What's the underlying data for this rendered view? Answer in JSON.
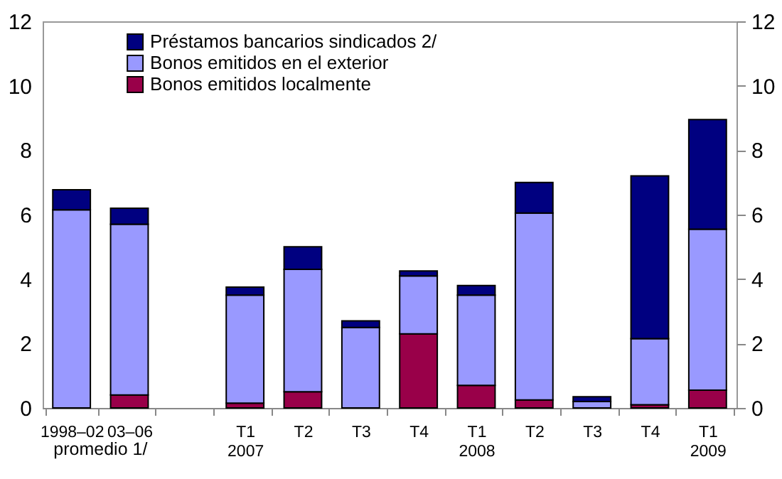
{
  "chart_data": {
    "type": "bar",
    "stacked": true,
    "categories": [
      "1998–02",
      "03–06",
      null,
      "T1\n2007",
      "T2",
      "T3",
      "T4",
      "T1\n2008",
      "T2",
      "T3",
      "T4",
      "T1\n2009"
    ],
    "series": [
      {
        "name": "Bonos emitidos localmente",
        "color": "#990049",
        "values": [
          0,
          0.4,
          null,
          0.15,
          0.5,
          0,
          2.3,
          0.7,
          0.25,
          0,
          0.1,
          0.55
        ]
      },
      {
        "name": "Bonos emitidos en el exterior",
        "color": "#9999ff",
        "values": [
          6.15,
          5.3,
          null,
          3.35,
          3.8,
          2.5,
          1.8,
          2.8,
          5.8,
          0.2,
          2.05,
          5.0
        ]
      },
      {
        "name": "Préstamos bancarios sindicados 2/",
        "color": "#000080",
        "values": [
          0.62,
          0.5,
          null,
          0.25,
          0.7,
          0.2,
          0.15,
          0.3,
          0.95,
          0.15,
          5.05,
          3.4
        ]
      }
    ],
    "ylim": [
      0,
      12
    ],
    "yticks": [
      0,
      2,
      4,
      6,
      8,
      10,
      12
    ],
    "y2lim": [
      0,
      12
    ],
    "y2ticks": [
      0,
      2,
      4,
      6,
      8,
      10,
      12
    ],
    "grid": false,
    "legend": "top left",
    "annotations": [
      "promedio 1/"
    ]
  }
}
